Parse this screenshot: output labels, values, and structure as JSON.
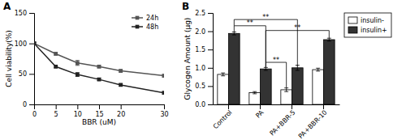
{
  "chart_data": [
    {
      "type": "line",
      "title": "A",
      "xlabel": "BBR (uM)",
      "ylabel": "Cell viability(%)",
      "x": [
        0,
        5,
        10,
        15,
        20,
        30
      ],
      "xlim": [
        0,
        30
      ],
      "xticks": [
        0,
        5,
        10,
        15,
        20,
        30
      ],
      "ylim": [
        0,
        150
      ],
      "yticks": [
        0,
        50,
        100,
        150
      ],
      "legend": "upper right",
      "series": [
        {
          "name": "24h",
          "color": "#555555",
          "marker": "square",
          "line_style": "solid",
          "values": [
            100,
            83,
            68,
            62,
            55,
            47
          ],
          "errors": [
            2,
            2,
            4,
            2,
            2,
            2
          ]
        },
        {
          "name": "48h",
          "color": "#222222",
          "marker": "square",
          "line_style": "solid",
          "values": [
            100,
            62,
            49,
            41,
            32,
            19
          ],
          "errors": [
            2,
            2,
            3,
            2,
            2,
            2
          ]
        }
      ]
    },
    {
      "type": "bar",
      "title": "B",
      "ylabel": "Glycogen Amount (µg)",
      "categories": [
        "Control",
        "PA",
        "PA+BBR-5",
        "PA+BBR-10"
      ],
      "ylim": [
        0,
        2.5
      ],
      "yticks": [
        {
          "value": 0,
          "label": "0.0"
        },
        0.5,
        {
          "value": 1,
          "label": "1.0"
        },
        1.5,
        {
          "value": 2,
          "label": "2.0"
        },
        2.5
      ],
      "legend": "upper right",
      "series": [
        {
          "name": "insulin-",
          "color": "#ffffff",
          "values": [
            0.82,
            0.32,
            0.4,
            0.95
          ],
          "errors": [
            0.04,
            0.03,
            0.05,
            0.04
          ]
        },
        {
          "name": "insulin+",
          "color": "#333333",
          "values": [
            1.94,
            0.97,
            1.0,
            1.77
          ],
          "errors": [
            0.04,
            0.04,
            0.07,
            0.04
          ]
        }
      ],
      "annotations": [
        {
          "text": "**",
          "y": 2.15,
          "from": {
            "category": "Control",
            "series": "insulin+",
            "y": 1.98
          },
          "to": {
            "category": "PA",
            "series": "insulin+",
            "y": 1.01
          }
        },
        {
          "text": "**",
          "y": 2.32,
          "from": {
            "category": "Control",
            "series": "insulin+",
            "y": 2.15
          },
          "to": {
            "category": "PA+BBR-5",
            "series": "insulin+",
            "y": 1.05
          }
        },
        {
          "text": "**",
          "y": 1.15,
          "from": {
            "category": "PA",
            "series": "insulin+",
            "y": 1.01
          },
          "to": {
            "category": "PA+BBR-5",
            "series": "insulin-",
            "y": 0.45
          }
        },
        {
          "text": "**",
          "y": 2.02,
          "from": {
            "category": "PA",
            "series": "insulin+",
            "y": 1.15
          },
          "to": {
            "category": "PA+BBR-10",
            "series": "insulin+",
            "y": 1.81
          }
        }
      ]
    }
  ]
}
